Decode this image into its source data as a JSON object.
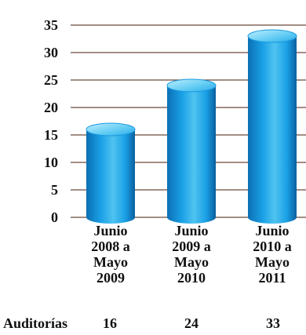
{
  "chart_data": {
    "type": "bar",
    "categories": [
      [
        "Junio",
        "2008 a",
        "Mayo",
        "2009"
      ],
      [
        "Junio",
        "2009 a",
        "Mayo",
        "2010"
      ],
      [
        "Junio",
        "2010 a",
        "Mayo",
        "2011"
      ]
    ],
    "values": [
      16,
      24,
      33
    ],
    "ylim": [
      0,
      35
    ],
    "yticks": [
      0,
      5,
      10,
      15,
      20,
      25,
      30,
      35
    ],
    "grid": true,
    "title": "",
    "xlabel": "",
    "ylabel": "",
    "table_row": {
      "label": "Auditorías",
      "values": [
        "16",
        "24",
        "33"
      ]
    },
    "colors": {
      "bar_light": "#4fc3f0",
      "bar_mid": "#1aa0e6",
      "bar_dark": "#0b6fb4",
      "bar_top": "#8fdcfb",
      "gridline": "#6b4a3a"
    }
  }
}
